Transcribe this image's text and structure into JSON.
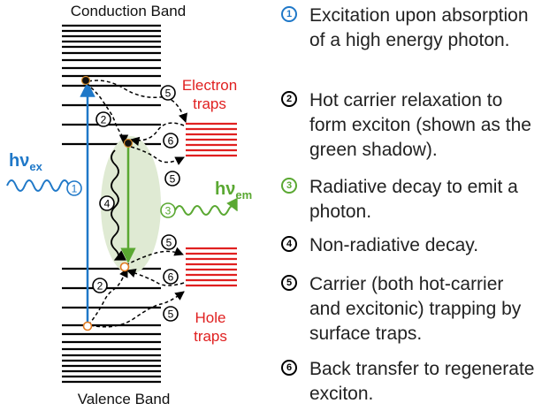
{
  "diagram": {
    "conduction_band_label": "Conduction Band",
    "valence_band_label": "Valence Band",
    "electron_traps_label_line1": "Electron",
    "electron_traps_label_line2": "traps",
    "hole_traps_label_line1": "Hole",
    "hole_traps_label_line2": "traps",
    "hv_ex": "hν",
    "hv_ex_sub": "ex",
    "hv_em": "hν",
    "hv_em_sub": "em",
    "colors": {
      "blue": "#1f78c8",
      "green": "#5aa832",
      "red": "#e02020",
      "shadow": "#dfead3",
      "black": "#000000"
    },
    "markers": {
      "m1": "1",
      "m2": "2",
      "m3": "3",
      "m4": "4",
      "m5": "5",
      "m6": "6"
    }
  },
  "legend": {
    "items": [
      {
        "marker": "1",
        "color": "blue",
        "text": "Excitation upon absorption of a high energy photon."
      },
      {
        "marker": "2",
        "color": "black",
        "text": "Hot carrier relaxation to form exciton (shown as the green shadow)."
      },
      {
        "marker": "3",
        "color": "green",
        "text": "Radiative decay to emit a photon."
      },
      {
        "marker": "4",
        "color": "black",
        "text": "Non-radiative decay."
      },
      {
        "marker": "5",
        "color": "black",
        "text": "Carrier (both hot-carrier and excitonic) trapping by surface traps."
      },
      {
        "marker": "6",
        "color": "black",
        "text": "Back transfer to regenerate exciton."
      }
    ]
  }
}
